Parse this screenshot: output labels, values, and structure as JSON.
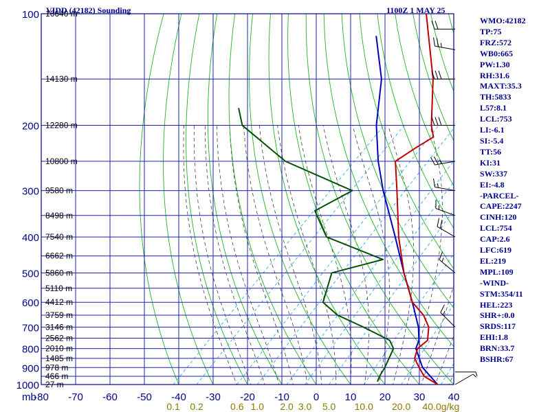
{
  "header": {
    "title": "VIDD (42182) Sounding",
    "datetime": "1100Z  1 MAY 25"
  },
  "indices": [
    "WMO:42182",
    "TP:75",
    "FRZ:572",
    "WB0:665",
    "PW:1.30",
    "RH:31.6",
    "MAXT:35.3",
    "TH:5833",
    "L57:8.1",
    "LCL:753",
    "LI:-6.1",
    "SI:-5.4",
    "TT:56",
    "KI:31",
    "SW:337",
    "EI:-4.8",
    "-PARCEL-",
    "CAPE:2247",
    "CINH:120",
    "LCL:754",
    "CAP:2.6",
    "LFC:619",
    "EL:219",
    "MPL:109",
    "-WIND-",
    "STM:354/11",
    "HEL:223",
    "SHR+:0.0",
    "SRDS:117",
    "EHI:1.8",
    "BRN:33.7",
    "BSHR:67"
  ],
  "colors": {
    "frame": "#00008b",
    "grid": "#1f1fb4",
    "dry_adiabat": "#1fb41f",
    "moist_adiabat": "#404040",
    "mixing_ratio": "#2aa6ff",
    "temperature": "#c00000",
    "dewpoint": "#005000",
    "parcel": "#0000c0",
    "wind": "#000000",
    "axis_label": "#00008b",
    "mixing_label": "#8b7a00"
  },
  "chart_data": {
    "type": "skew-t",
    "axes": {
      "pressure_unit_label": "mb",
      "pressure_ticks": [
        100,
        200,
        300,
        400,
        500,
        600,
        700,
        800,
        900,
        1000
      ],
      "pressure_range": [
        100,
        1000
      ],
      "temperature_ticks": [
        -80,
        -70,
        -60,
        -50,
        -40,
        -30,
        -20,
        -10,
        0,
        10,
        20,
        30,
        40
      ],
      "temperature_ticks_label": [
        "-80",
        "-70",
        "-60",
        "-50",
        "-40",
        "-30",
        "-20",
        "-10",
        "0",
        "10",
        "20",
        "30",
        "40"
      ],
      "mixing_ratio_labels": [
        "0.1",
        "0.2",
        "0.6",
        "1.0",
        "2.0",
        "3.0",
        "5.0",
        "10.0",
        "20.0",
        "40.0g/kg"
      ]
    },
    "height_labels": [
      {
        "p": 100,
        "label": "16640 m"
      },
      {
        "p": 150,
        "label": "14130 m"
      },
      {
        "p": 200,
        "label": "12280 m"
      },
      {
        "p": 250,
        "label": "10800 m"
      },
      {
        "p": 300,
        "label": "9580 m"
      },
      {
        "p": 350,
        "label": "8498 m"
      },
      {
        "p": 400,
        "label": "7540 m"
      },
      {
        "p": 450,
        "label": "6662 m"
      },
      {
        "p": 500,
        "label": "5860 m"
      },
      {
        "p": 550,
        "label": "5110 m"
      },
      {
        "p": 600,
        "label": "4412 m"
      },
      {
        "p": 650,
        "label": "3759 m"
      },
      {
        "p": 700,
        "label": "3146 m"
      },
      {
        "p": 750,
        "label": "2562 m"
      },
      {
        "p": 800,
        "label": "2010 m"
      },
      {
        "p": 850,
        "label": "1485 m"
      },
      {
        "p": 900,
        "label": "978 m"
      },
      {
        "p": 950,
        "label": "466 m"
      },
      {
        "p": 1000,
        "label": "27 m"
      }
    ],
    "temperature_profile": [
      {
        "p": 1000,
        "t": 35.3
      },
      {
        "p": 950,
        "t": 29
      },
      {
        "p": 900,
        "t": 25
      },
      {
        "p": 850,
        "t": 21
      },
      {
        "p": 800,
        "t": 19
      },
      {
        "p": 760,
        "t": 19.5
      },
      {
        "p": 700,
        "t": 16
      },
      {
        "p": 650,
        "t": 11
      },
      {
        "p": 600,
        "t": 4
      },
      {
        "p": 500,
        "t": -7
      },
      {
        "p": 400,
        "t": -19
      },
      {
        "p": 300,
        "t": -33
      },
      {
        "p": 250,
        "t": -42
      },
      {
        "p": 230,
        "t": -40
      },
      {
        "p": 215,
        "t": -38
      },
      {
        "p": 200,
        "t": -42
      },
      {
        "p": 150,
        "t": -55
      },
      {
        "p": 100,
        "t": -76
      }
    ],
    "dewpoint_profile": [
      {
        "p": 980,
        "t": 16.9
      },
      {
        "p": 950,
        "t": 16
      },
      {
        "p": 900,
        "t": 15
      },
      {
        "p": 800,
        "t": 12
      },
      {
        "p": 760,
        "t": 8.5
      },
      {
        "p": 700,
        "t": -3
      },
      {
        "p": 650,
        "t": -14
      },
      {
        "p": 600,
        "t": -22
      },
      {
        "p": 500,
        "t": -28
      },
      {
        "p": 460,
        "t": -17
      },
      {
        "p": 400,
        "t": -40
      },
      {
        "p": 340,
        "t": -51
      },
      {
        "p": 300,
        "t": -46
      },
      {
        "p": 250,
        "t": -74
      },
      {
        "p": 200,
        "t": -97
      },
      {
        "p": 180,
        "t": -103
      }
    ],
    "parcel_profile": [
      {
        "p": 1000,
        "t": 35.3
      },
      {
        "p": 900,
        "t": 26
      },
      {
        "p": 800,
        "t": 18.5
      },
      {
        "p": 760,
        "t": 17
      },
      {
        "p": 700,
        "t": 13
      },
      {
        "p": 600,
        "t": 4
      },
      {
        "p": 500,
        "t": -7
      },
      {
        "p": 400,
        "t": -20
      },
      {
        "p": 300,
        "t": -37
      },
      {
        "p": 250,
        "t": -47
      },
      {
        "p": 200,
        "t": -58
      },
      {
        "p": 150,
        "t": -70
      },
      {
        "p": 115,
        "t": -84
      }
    ],
    "wind_barbs": [
      {
        "p": 1000,
        "dir": 60,
        "spd": 5
      },
      {
        "p": 925,
        "dir": 90,
        "spd": 5
      },
      {
        "p": 700,
        "dir": 315,
        "spd": 15
      },
      {
        "p": 500,
        "dir": 310,
        "spd": 15
      },
      {
        "p": 400,
        "dir": 300,
        "spd": 20
      },
      {
        "p": 350,
        "dir": 290,
        "spd": 15
      },
      {
        "p": 300,
        "dir": 280,
        "spd": 15
      },
      {
        "p": 250,
        "dir": 260,
        "spd": 25
      },
      {
        "p": 200,
        "dir": 270,
        "spd": 30
      },
      {
        "p": 150,
        "dir": 270,
        "spd": 30
      },
      {
        "p": 125,
        "dir": 280,
        "spd": 25
      },
      {
        "p": 110,
        "dir": 270,
        "spd": 20
      }
    ]
  }
}
